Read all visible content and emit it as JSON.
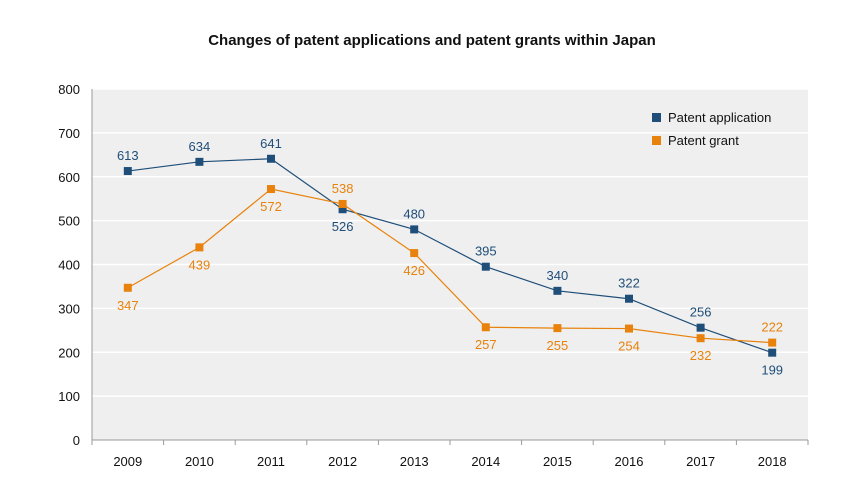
{
  "chart_data": {
    "type": "line",
    "title": "Changes of patent applications and patent grants within Japan",
    "xlabel": "",
    "ylabel": "",
    "categories": [
      "2009",
      "2010",
      "2011",
      "2012",
      "2013",
      "2014",
      "2015",
      "2016",
      "2017",
      "2018"
    ],
    "ylim": [
      0,
      800
    ],
    "yticks": [
      "0",
      "100",
      "200",
      "300",
      "400",
      "500",
      "600",
      "700",
      "800"
    ],
    "grid": true,
    "legend_position": "top-right",
    "series": [
      {
        "name": "Patent application",
        "color": "#1f4e79",
        "values": [
          613,
          634,
          641,
          526,
          480,
          395,
          340,
          322,
          256,
          199
        ],
        "labels": [
          "613",
          "634",
          "641",
          "526",
          "480",
          "395",
          "340",
          "322",
          "256",
          "199"
        ]
      },
      {
        "name": "Patent grant",
        "color": "#e8820c",
        "values": [
          347,
          439,
          572,
          538,
          426,
          257,
          255,
          254,
          232,
          222
        ],
        "labels": [
          "347",
          "439",
          "572",
          "538",
          "426",
          "257",
          "255",
          "254",
          "232",
          "222"
        ]
      }
    ]
  }
}
